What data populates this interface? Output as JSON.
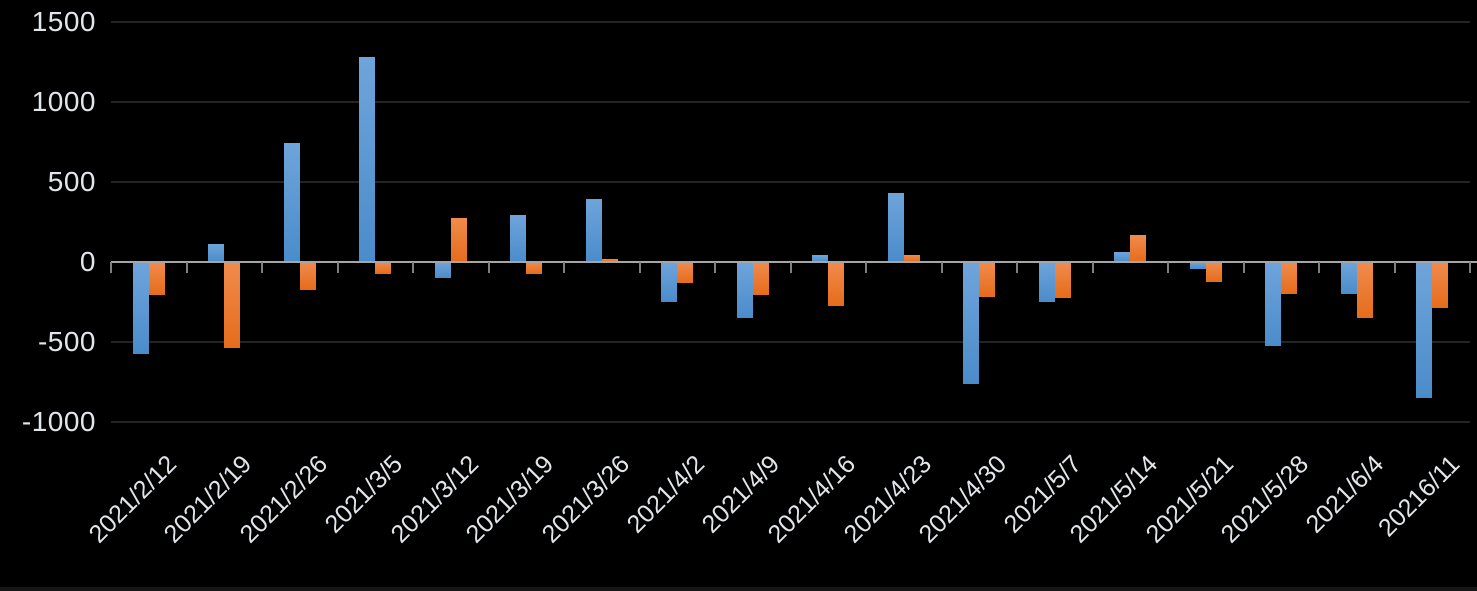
{
  "chart_data": {
    "type": "bar",
    "title": "",
    "categories": [
      "2021/2/12",
      "2021/2/19",
      "2021/2/26",
      "2021/3/5",
      "2021/3/12",
      "2021/3/19",
      "2021/3/26",
      "2021/4/2",
      "2021/4/9",
      "2021/4/16",
      "2021/4/23",
      "2021/4/30",
      "2021/5/7",
      "2021/5/14",
      "2021/5/21",
      "2021/5/28",
      "2021/6/4",
      "20216/11"
    ],
    "series": [
      {
        "id": "blue",
        "color": "#5B9BD5",
        "gradient_top": "#6FA4DB",
        "gradient_bottom": "#4A8CCA",
        "values": [
          -580,
          110,
          740,
          1280,
          -100,
          295,
          395,
          -255,
          -355,
          45,
          430,
          -765,
          -250,
          60,
          -45,
          -530,
          -205,
          -850
        ]
      },
      {
        "id": "orange",
        "color": "#ED7D31",
        "gradient_top": "#F18B4D",
        "gradient_bottom": "#E56C1B",
        "values": [
          -210,
          -540,
          -175,
          -75,
          275,
          -80,
          15,
          -135,
          -210,
          -280,
          40,
          -220,
          -225,
          165,
          -125,
          -205,
          -355,
          -290
        ]
      }
    ],
    "y_ticks": [
      1500,
      1000,
      500,
      0,
      -500,
      -1000
    ],
    "ylim": [
      -1000,
      1500
    ],
    "grid": true,
    "legend": false,
    "xlabel": "",
    "ylabel": "",
    "colors": {
      "background": "#000000",
      "axis_line": "#A6A6A6",
      "gridline": "#242424",
      "tick": "#7F7F7F",
      "label_text": "#E2E6EB",
      "bottom_edge": "#161616"
    }
  }
}
